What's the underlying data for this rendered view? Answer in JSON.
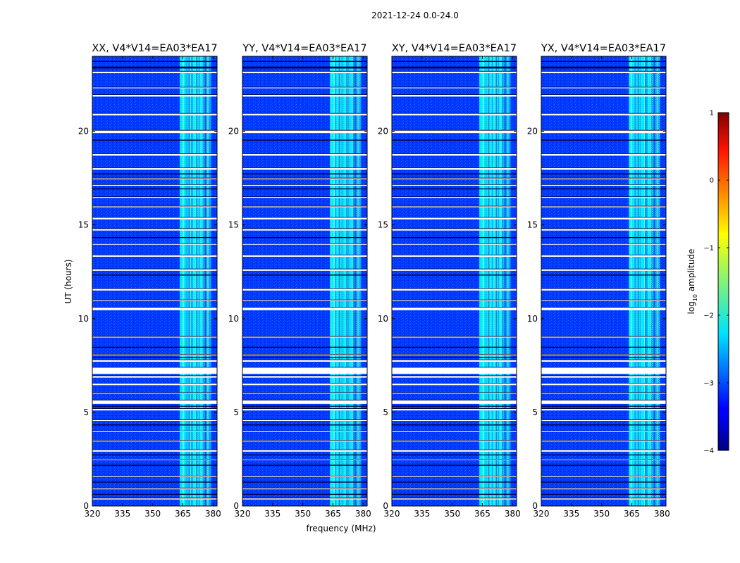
{
  "figure_title": "2021-12-24 0.0-24.0",
  "chart_data": {
    "type": "heatmap",
    "suptitle": "2021-12-24 0.0-24.0",
    "ylabel": "UT (hours)",
    "xlabel": "frequency (MHz)",
    "xlim": [
      320,
      382
    ],
    "ylim": [
      0,
      24
    ],
    "xticks": [
      320,
      335,
      350,
      365,
      380
    ],
    "yticks": [
      0,
      5,
      10,
      15,
      20
    ],
    "panels": [
      {
        "title": "XX, V4*V14=EA03*EA17",
        "polarization": "XX"
      },
      {
        "title": "YY, V4*V14=EA03*EA17",
        "polarization": "YY"
      },
      {
        "title": "XY, V4*V14=EA03*EA17",
        "polarization": "XY"
      },
      {
        "title": "YX, V4*V14=EA03*EA17",
        "polarization": "YX"
      }
    ],
    "colorbar": {
      "label": "log10 amplitude",
      "label_main": "log",
      "label_sub": "10",
      "label_tail": " amplitude",
      "range": [
        -4,
        1
      ],
      "ticks": [
        1,
        0,
        -1,
        -2,
        -3,
        -4
      ],
      "tick_labels": [
        "1",
        "0",
        "−1",
        "−2",
        "−3",
        "−4"
      ],
      "colormap": "jet"
    },
    "bright_band_mhz": [
      363.5,
      374.5
    ],
    "band_secondary_mhz": [
      374.5,
      379
    ],
    "background_level": -3.1,
    "band_level": -2.2,
    "flagged_rows_ut": [
      [
        0.35,
        0.42
      ],
      [
        0.9,
        0.95
      ],
      [
        1.55,
        1.6
      ],
      [
        2.45,
        2.5
      ],
      [
        2.9,
        3.0
      ],
      [
        3.45,
        3.5
      ],
      [
        3.95,
        4.0
      ],
      [
        4.55,
        4.6
      ],
      [
        5.1,
        5.2
      ],
      [
        5.45,
        5.65
      ],
      [
        6.0,
        6.05
      ],
      [
        6.45,
        6.55
      ],
      [
        6.85,
        6.95
      ],
      [
        7.05,
        7.4
      ],
      [
        7.7,
        7.8
      ],
      [
        8.05,
        8.1
      ],
      [
        9.0,
        9.05
      ],
      [
        10.45,
        10.6
      ],
      [
        10.95,
        11.0
      ],
      [
        11.5,
        11.6
      ],
      [
        12.55,
        12.65
      ],
      [
        13.3,
        13.4
      ],
      [
        13.95,
        14.0
      ],
      [
        14.7,
        14.8
      ],
      [
        15.3,
        15.4
      ],
      [
        15.95,
        16.0
      ],
      [
        16.45,
        16.5
      ],
      [
        17.1,
        17.15
      ],
      [
        17.45,
        17.5
      ],
      [
        17.95,
        18.05
      ],
      [
        18.7,
        18.8
      ],
      [
        19.9,
        20.05
      ],
      [
        20.85,
        20.95
      ],
      [
        21.85,
        21.95
      ],
      [
        22.3,
        22.35
      ],
      [
        23.1,
        23.2
      ]
    ],
    "black_rows_ut": [
      [
        0.6,
        0.65
      ],
      [
        1.25,
        1.3
      ],
      [
        2.15,
        2.2
      ],
      [
        2.7,
        2.75
      ],
      [
        4.3,
        4.35
      ],
      [
        5.3,
        5.35
      ],
      [
        7.9,
        7.95
      ],
      [
        8.45,
        8.5
      ],
      [
        12.3,
        12.35
      ],
      [
        14.3,
        14.35
      ],
      [
        16.9,
        16.95
      ],
      [
        17.7,
        17.75
      ],
      [
        19.5,
        19.55
      ],
      [
        23.35,
        23.45
      ],
      [
        23.7,
        23.75
      ]
    ]
  }
}
